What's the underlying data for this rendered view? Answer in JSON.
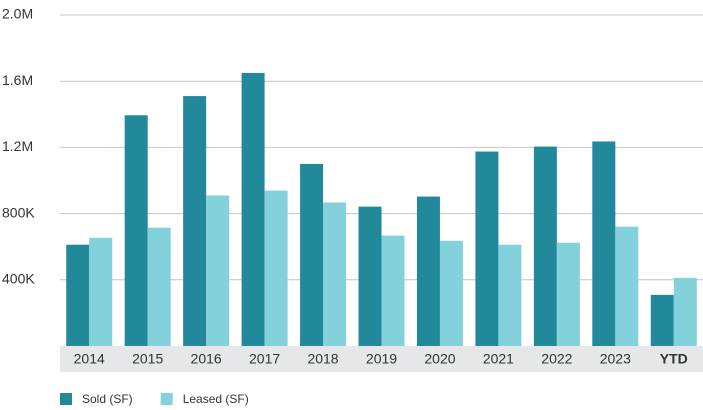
{
  "chart_data": {
    "type": "bar",
    "categories": [
      "2014",
      "2015",
      "2016",
      "2017",
      "2018",
      "2019",
      "2020",
      "2021",
      "2022",
      "2023",
      "YTD"
    ],
    "series": [
      {
        "name": "Sold (SF)",
        "color": "#22899a",
        "values": [
          612000,
          1394000,
          1510000,
          1650000,
          1100000,
          842000,
          903000,
          1175000,
          1205000,
          1236000,
          309000
        ]
      },
      {
        "name": "Leased (SF)",
        "color": "#82d1db",
        "values": [
          654000,
          715000,
          909000,
          939000,
          867000,
          667000,
          636000,
          612000,
          624000,
          721000,
          412000
        ]
      }
    ],
    "ylim": [
      0,
      2000000
    ],
    "yticks": [
      {
        "value": 400000,
        "label": "400K"
      },
      {
        "value": 800000,
        "label": "800K"
      },
      {
        "value": 1200000,
        "label": "1.2M"
      },
      {
        "value": 1600000,
        "label": "1.6M"
      },
      {
        "value": 2000000,
        "label": "2.0M"
      }
    ],
    "grid": true,
    "legend": "bottom-left"
  }
}
